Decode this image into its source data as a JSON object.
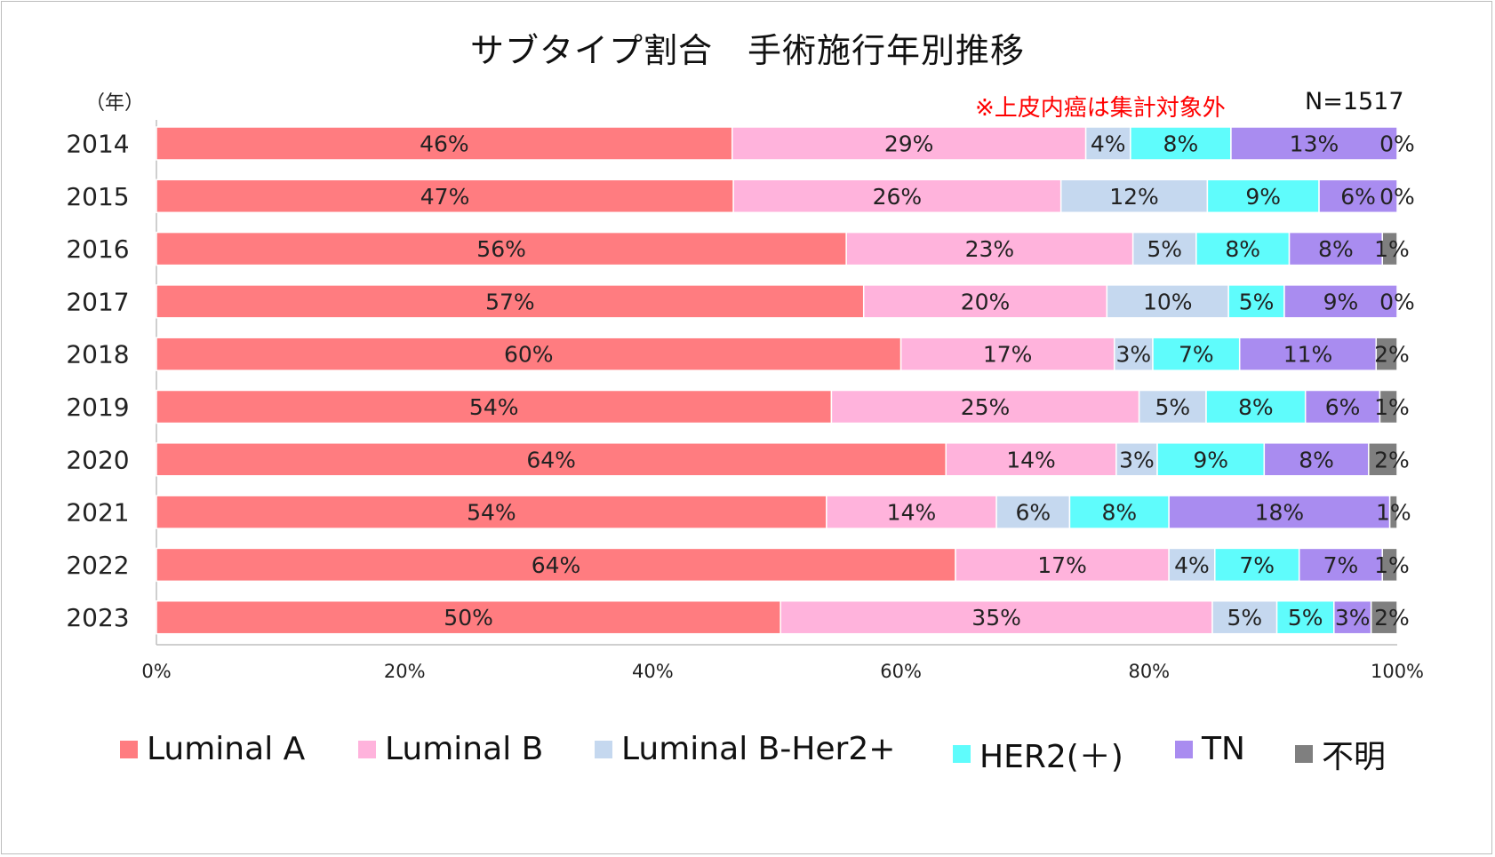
{
  "title": "サブタイプ割合　手術施行年別推移",
  "unit_label": "（年）",
  "note": "※上皮内癌は集計対象外",
  "n_label": "N=1517",
  "chart_data": {
    "type": "bar",
    "orientation": "horizontal",
    "stacked": true,
    "percent": true,
    "categories": [
      "2014",
      "2015",
      "2016",
      "2017",
      "2018",
      "2019",
      "2020",
      "2021",
      "2022",
      "2023"
    ],
    "series": [
      {
        "name": "Luminal A",
        "color": "#ff7c80",
        "values": [
          46.4,
          46.5,
          55.6,
          57.0,
          60.0,
          54.4,
          63.5,
          54.0,
          64.4,
          50.3
        ],
        "labels": [
          "46%",
          "47%",
          "56%",
          "57%",
          "60%",
          "54%",
          "64%",
          "54%",
          "64%",
          "50%"
        ]
      },
      {
        "name": "Luminal B",
        "color": "#ffb3dc",
        "values": [
          28.5,
          26.4,
          23.1,
          19.6,
          17.2,
          24.8,
          13.7,
          13.7,
          17.2,
          34.8
        ],
        "labels": [
          "29%",
          "26%",
          "23%",
          "20%",
          "17%",
          "25%",
          "14%",
          "14%",
          "17%",
          "35%"
        ]
      },
      {
        "name": "Luminal B-Her2+",
        "color": "#c5d8ef",
        "values": [
          3.6,
          11.8,
          5.1,
          9.8,
          3.1,
          5.4,
          3.3,
          5.9,
          3.7,
          5.2
        ],
        "labels": [
          "4%",
          "12%",
          "5%",
          "10%",
          "3%",
          "5%",
          "3%",
          "6%",
          "4%",
          "5%"
        ]
      },
      {
        "name": "HER2(＋)",
        "color": "#5ffcfc",
        "values": [
          8.1,
          9.0,
          7.5,
          4.5,
          7.0,
          8.0,
          8.6,
          8.0,
          6.8,
          4.6
        ],
        "labels": [
          "8%",
          "9%",
          "8%",
          "5%",
          "7%",
          "8%",
          "9%",
          "8%",
          "7%",
          "5%"
        ]
      },
      {
        "name": "TN",
        "color": "#a98cf0",
        "values": [
          13.4,
          6.3,
          7.5,
          9.1,
          11.0,
          6.0,
          8.4,
          17.8,
          6.7,
          3.0
        ],
        "labels": [
          "13%",
          "6%",
          "8%",
          "9%",
          "11%",
          "6%",
          "8%",
          "18%",
          "7%",
          "3%"
        ]
      },
      {
        "name": "不明",
        "color": "#7f7f7f",
        "values": [
          0.0,
          0.0,
          1.2,
          0.0,
          1.7,
          1.4,
          2.3,
          0.6,
          1.2,
          2.1
        ],
        "labels": [
          "0%",
          "0%",
          "1%",
          "0%",
          "2%",
          "1%",
          "2%",
          "1%",
          "1%",
          "2%"
        ]
      }
    ],
    "x_ticks": [
      "0%",
      "20%",
      "40%",
      "60%",
      "80%",
      "100%"
    ],
    "xlim": [
      0,
      100
    ],
    "legend_position": "bottom",
    "grid": false
  }
}
